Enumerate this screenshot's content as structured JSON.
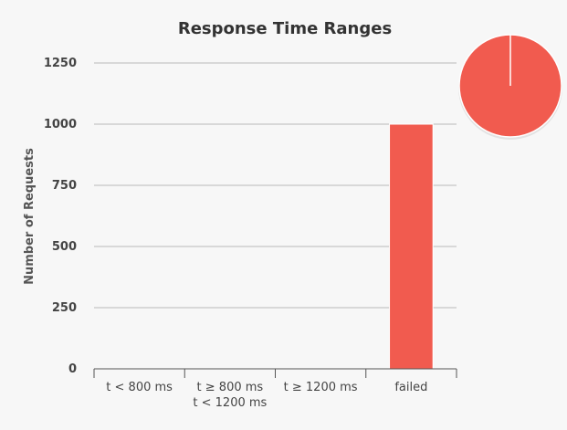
{
  "chart_data": {
    "type": "bar",
    "title": "Response Time Ranges",
    "ylabel": "Number of Requests",
    "xlabel": "",
    "categories": [
      [
        "t < 800 ms"
      ],
      [
        "t ≥ 800 ms",
        "t < 1200 ms"
      ],
      [
        "t ≥ 1200 ms"
      ],
      [
        "failed"
      ]
    ],
    "values": [
      0,
      0,
      0,
      1000
    ],
    "ylim": [
      0,
      1250
    ],
    "yticks": [
      0,
      250,
      500,
      750,
      1000,
      1250
    ],
    "grid": true,
    "legend": "none",
    "colors": {
      "failed": "#f15b4f",
      "grid": "#b9b9b9",
      "axis": "#555555",
      "text": "#444444"
    },
    "pie": {
      "type": "pie",
      "slices": [
        {
          "label": "failed",
          "value": 1000,
          "color": "#f15b4f"
        }
      ]
    }
  }
}
